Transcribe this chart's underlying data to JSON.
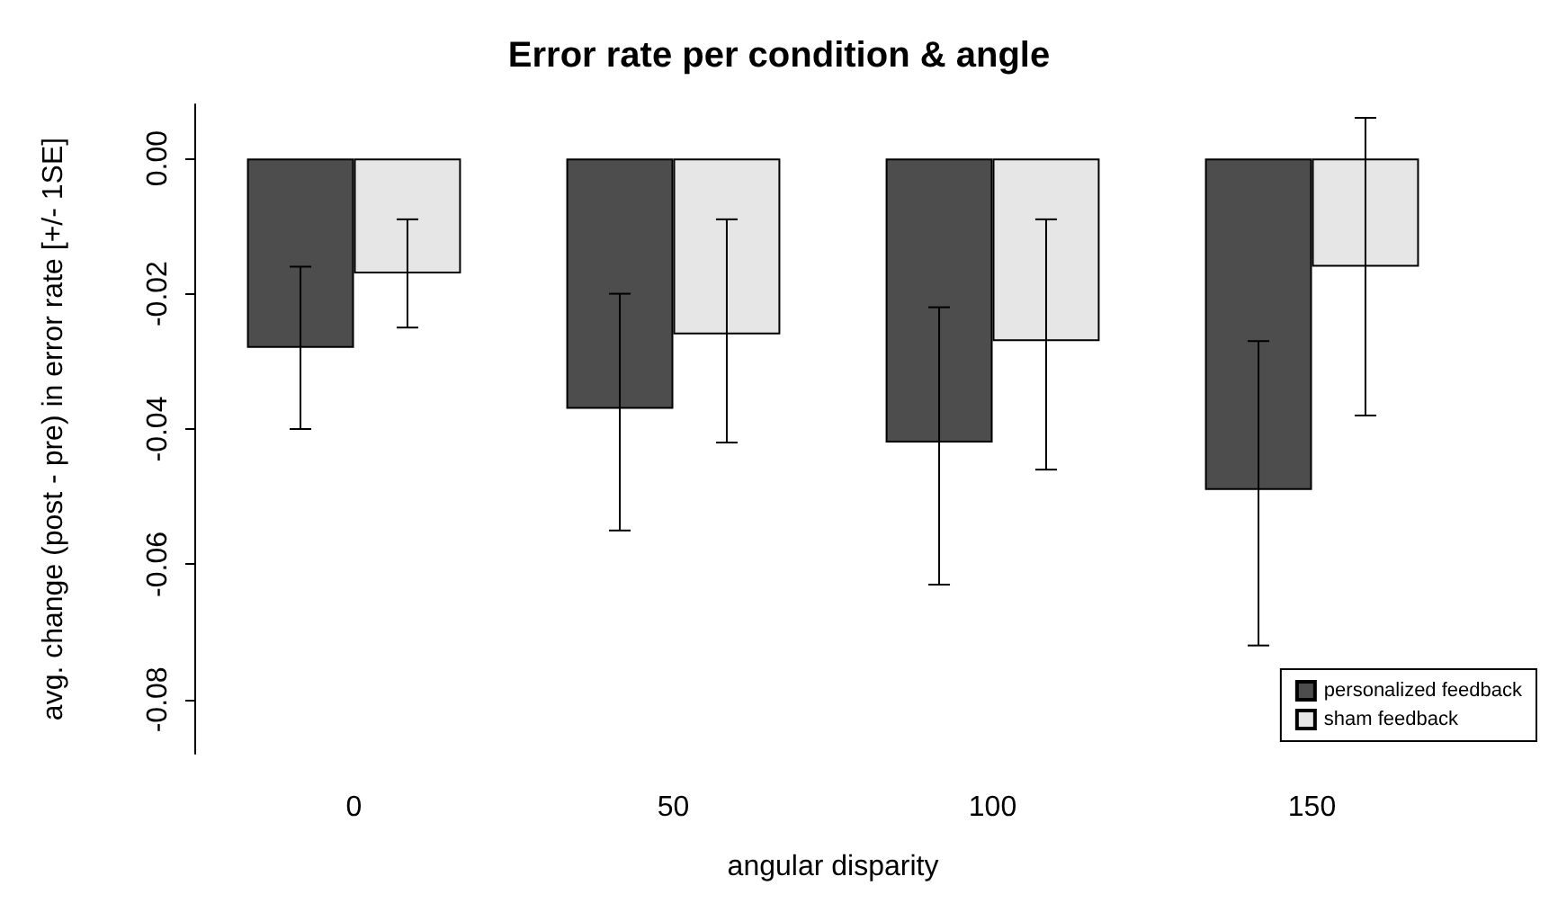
{
  "chart_data": {
    "type": "bar",
    "title": "Error rate per condition & angle",
    "xlabel": "angular disparity",
    "ylabel": "avg. change (post - pre) in error rate [+/- 1SE]",
    "categories": [
      "0",
      "50",
      "100",
      "150"
    ],
    "series": [
      {
        "name": "personalized feedback",
        "color": "#4d4d4d",
        "values": [
          -0.028,
          -0.037,
          -0.042,
          -0.049
        ],
        "errors": [
          [
            -0.04,
            -0.016
          ],
          [
            -0.055,
            -0.02
          ],
          [
            -0.063,
            -0.022
          ],
          [
            -0.072,
            -0.027
          ]
        ]
      },
      {
        "name": "sham feedback",
        "color": "#e6e6e6",
        "values": [
          -0.017,
          -0.026,
          -0.027,
          -0.016
        ],
        "errors": [
          [
            -0.025,
            -0.009
          ],
          [
            -0.042,
            -0.009
          ],
          [
            -0.046,
            -0.009
          ],
          [
            -0.038,
            0.006
          ]
        ]
      }
    ],
    "ylim": [
      -0.088,
      0.008
    ],
    "yticks": [
      {
        "value": -0.08,
        "label": "-0.08"
      },
      {
        "value": -0.06,
        "label": "-0.06"
      },
      {
        "value": -0.04,
        "label": "-0.04"
      },
      {
        "value": -0.02,
        "label": "-0.02"
      },
      {
        "value": 0,
        "label": "0.00"
      }
    ],
    "legend": "bottom right",
    "grid": false
  }
}
